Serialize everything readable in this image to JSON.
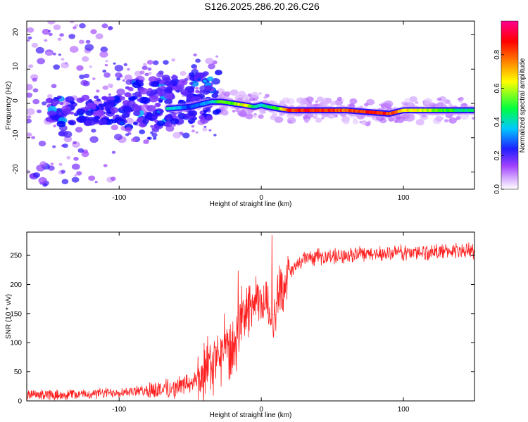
{
  "title": "S126.2025.286.20.26.C26",
  "chart_data": [
    {
      "type": "heatmap",
      "name": "spectrogram",
      "xlabel": "Height of straight line (km)",
      "ylabel": "Frequency (Hz)",
      "xlim": [
        -165,
        150
      ],
      "ylim": [
        -25,
        24
      ],
      "xticks": [
        -100,
        0,
        100
      ],
      "yticks": [
        -20,
        -10,
        0,
        10,
        20
      ],
      "colorbar": {
        "label": "Normalized spectral amplitude",
        "range": [
          0,
          1
        ],
        "ticks": [
          0.0,
          0.2,
          0.4,
          0.6,
          0.8
        ],
        "tick_labels": [
          "0.0",
          "0.2",
          "0.4",
          "0.6",
          "0.8"
        ],
        "colors": [
          "#ffffff",
          "#a040ff",
          "#0000ff",
          "#00c8ff",
          "#00ff00",
          "#ffff00",
          "#ff8000",
          "#ff0000",
          "#ff0090"
        ]
      },
      "ridge": {
        "x": [
          -65,
          -50,
          -35,
          -28,
          -20,
          -12,
          -5,
          0,
          5,
          12,
          20,
          40,
          60,
          75,
          90,
          100,
          120,
          140,
          150
        ],
        "frequency": [
          -1.5,
          -1.0,
          0.5,
          0.5,
          0.0,
          -0.5,
          -1.0,
          -0.5,
          -1.0,
          -1.5,
          -2.0,
          -2.0,
          -2.0,
          -2.5,
          -3.0,
          -2.0,
          -2.0,
          -2.0,
          -2.0
        ],
        "amplitude": [
          0.45,
          0.3,
          0.4,
          0.6,
          0.55,
          0.7,
          0.5,
          0.4,
          0.5,
          0.55,
          0.9,
          0.95,
          0.85,
          0.9,
          0.9,
          0.7,
          0.6,
          0.5,
          0.45
        ]
      }
    },
    {
      "type": "line",
      "name": "snr",
      "xlabel": "Height of straight line (km)",
      "ylabel": "SNR (10 * v/v)",
      "xlim": [
        -165,
        150
      ],
      "ylim": [
        0,
        290
      ],
      "xticks": [
        -100,
        0,
        100
      ],
      "yticks": [
        0,
        50,
        100,
        150,
        200,
        250
      ],
      "color": "#ff2020",
      "trend": {
        "x": [
          -165,
          -120,
          -80,
          -60,
          -45,
          -35,
          -25,
          -20,
          -15,
          -10,
          -5,
          0,
          5,
          8,
          12,
          20,
          30,
          60,
          100,
          150
        ],
        "snr": [
          10,
          12,
          18,
          22,
          35,
          60,
          90,
          80,
          130,
          155,
          170,
          165,
          170,
          130,
          185,
          220,
          245,
          250,
          255,
          258
        ]
      }
    }
  ]
}
